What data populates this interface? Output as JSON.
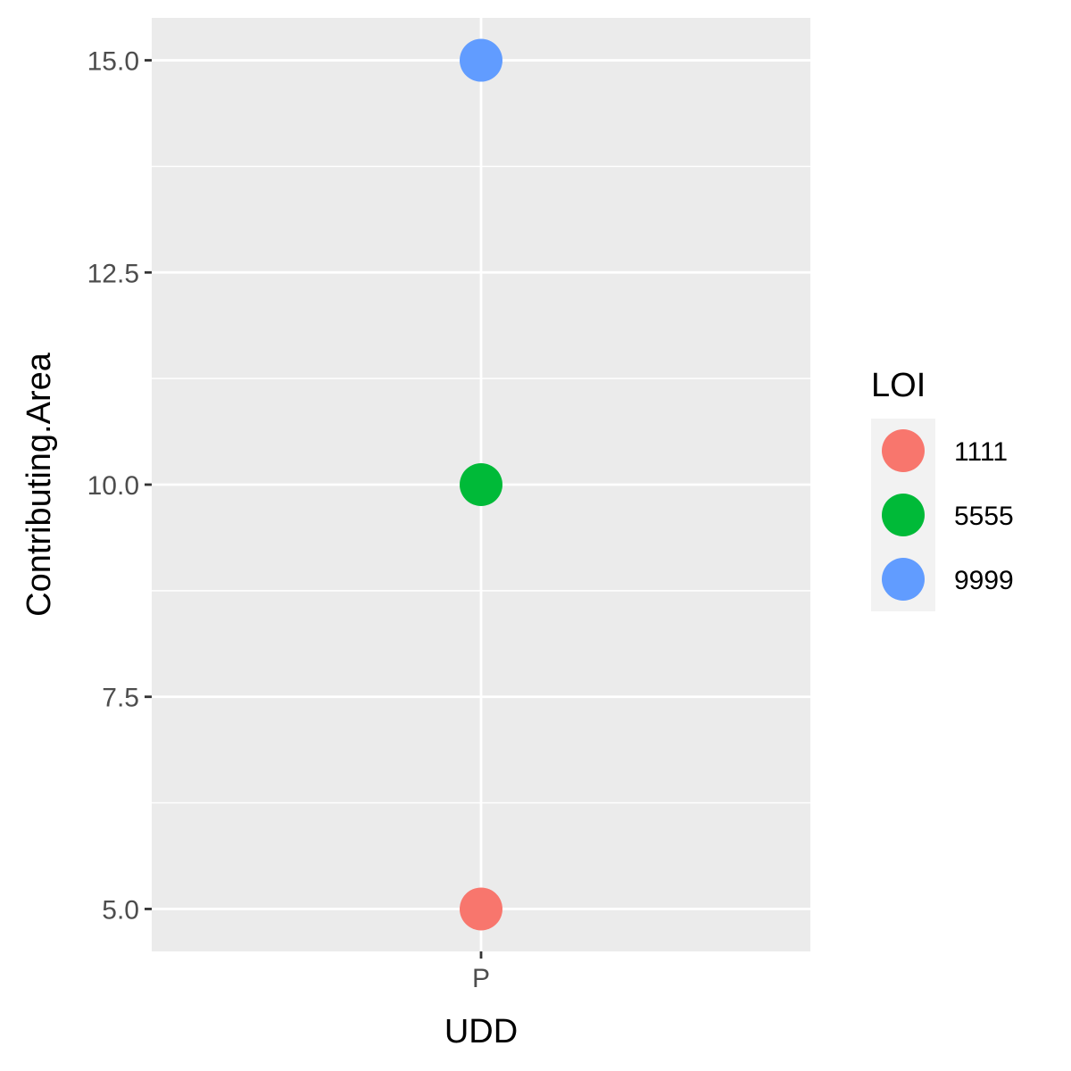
{
  "chart_data": {
    "type": "scatter",
    "xlabel": "UDD",
    "ylabel": "Contributing.Area",
    "categories": [
      "P"
    ],
    "ylim": [
      4.5,
      15.5
    ],
    "y_ticks": [
      "5.0",
      "7.5",
      "10.0",
      "12.5",
      "15.0"
    ],
    "y_tick_values": [
      5.0,
      7.5,
      10.0,
      12.5,
      15.0
    ],
    "grid": true,
    "legend_placement": "right",
    "legend": {
      "title": "LOI",
      "entries": [
        "1111",
        "5555",
        "9999"
      ]
    },
    "series": [
      {
        "name": "1111",
        "color": "#F8766D",
        "points": [
          {
            "x": "P",
            "y": 5.0
          }
        ]
      },
      {
        "name": "5555",
        "color": "#00BA38",
        "points": [
          {
            "x": "P",
            "y": 10.0
          }
        ]
      },
      {
        "name": "9999",
        "color": "#619CFF",
        "points": [
          {
            "x": "P",
            "y": 15.0
          }
        ]
      }
    ],
    "colors": {
      "panel_background": "#EBEBEB",
      "grid_line": "#FFFFFF",
      "tick_text": "#4D4D4D",
      "tick_mark": "#333333",
      "legend_key_background": "#F2F2F2"
    }
  }
}
